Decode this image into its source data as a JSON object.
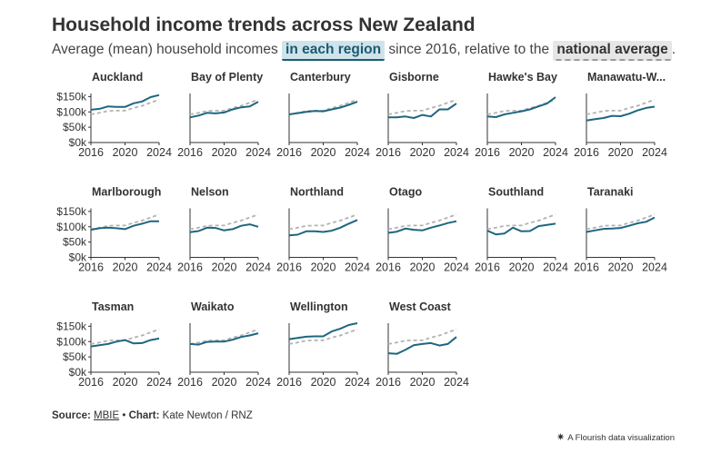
{
  "title": "Household income trends across New Zealand",
  "subtitle": {
    "pre": "Average (mean) household incomes ",
    "region_label": "in each region",
    "mid": " since 2016, relative to the ",
    "national_label": "national average",
    "post": "."
  },
  "footer": {
    "source_label": "Source:",
    "source_name": "MBIE",
    "sep": " • ",
    "chart_label": "Chart:",
    "chart_credit": "Kate Newton / RNZ"
  },
  "flourish_credit": "A Flourish data visualization",
  "colors": {
    "region": "#1e6680",
    "national": "#b3b3b3",
    "axis": "#333333"
  },
  "chart_data": {
    "type": "line",
    "x": [
      2016,
      2017,
      2018,
      2019,
      2020,
      2021,
      2022,
      2023,
      2024
    ],
    "xticks": [
      "2016",
      "2020",
      "2024"
    ],
    "yticks": [
      "$0k",
      "$50k",
      "$100k",
      "$150k"
    ],
    "ylim": [
      0,
      160
    ],
    "national_average": [
      92,
      97,
      103,
      104,
      104,
      113,
      120,
      130,
      140
    ],
    "panels": [
      {
        "region": "Auckland",
        "values": [
          107,
          110,
          118,
          116,
          116,
          128,
          134,
          148,
          155
        ]
      },
      {
        "region": "Bay of Plenty",
        "values": [
          82,
          88,
          97,
          95,
          98,
          108,
          115,
          118,
          133
        ]
      },
      {
        "region": "Canterbury",
        "values": [
          92,
          96,
          100,
          103,
          102,
          108,
          114,
          123,
          133
        ]
      },
      {
        "region": "Gisborne",
        "values": [
          82,
          82,
          85,
          80,
          90,
          85,
          108,
          108,
          127
        ]
      },
      {
        "region": "Hawke's Bay",
        "values": [
          85,
          83,
          92,
          97,
          102,
          108,
          118,
          127,
          148
        ]
      },
      {
        "region": "Manawatu-W...",
        "values": [
          72,
          76,
          80,
          87,
          86,
          94,
          105,
          113,
          117
        ]
      },
      {
        "region": "Marlborough",
        "values": [
          90,
          95,
          97,
          95,
          92,
          103,
          110,
          118,
          118
        ]
      },
      {
        "region": "Nelson",
        "values": [
          82,
          86,
          97,
          96,
          88,
          92,
          103,
          108,
          100
        ]
      },
      {
        "region": "Northland",
        "values": [
          72,
          74,
          85,
          85,
          83,
          87,
          97,
          110,
          122
        ]
      },
      {
        "region": "Otago",
        "values": [
          80,
          84,
          94,
          90,
          88,
          97,
          104,
          112,
          118
        ]
      },
      {
        "region": "Southland",
        "values": [
          87,
          75,
          78,
          97,
          85,
          86,
          102,
          106,
          110
        ]
      },
      {
        "region": "Taranaki",
        "values": [
          83,
          88,
          93,
          94,
          96,
          103,
          111,
          116,
          130
        ]
      },
      {
        "region": "Tasman",
        "values": [
          84,
          88,
          92,
          100,
          105,
          94,
          95,
          105,
          110
        ]
      },
      {
        "region": "Waikato",
        "values": [
          92,
          90,
          99,
          100,
          100,
          106,
          115,
          120,
          127
        ]
      },
      {
        "region": "Wellington",
        "values": [
          108,
          112,
          116,
          117,
          117,
          133,
          142,
          154,
          160
        ]
      },
      {
        "region": "West Coast",
        "values": [
          62,
          60,
          73,
          88,
          92,
          95,
          87,
          92,
          115
        ]
      }
    ]
  }
}
